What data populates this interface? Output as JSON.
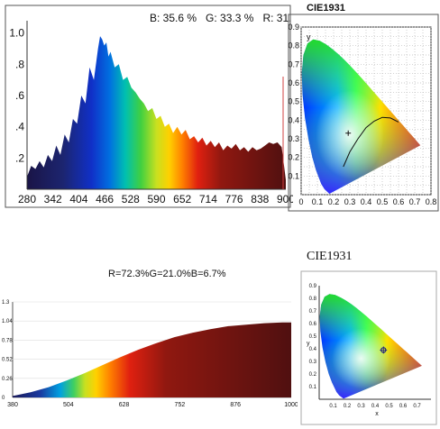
{
  "chart_data": [
    {
      "type": "area",
      "ratio_label": {
        "B": "B: 35.6 %",
        "G": "G: 33.3 %",
        "R": "R: 31."
      },
      "xticks": [
        280,
        342,
        404,
        466,
        528,
        590,
        652,
        714,
        776,
        838,
        900
      ],
      "yticks": [
        0.2,
        0.4,
        0.6,
        0.8,
        1.0
      ],
      "xlim": [
        280,
        900
      ],
      "ylim": [
        0,
        1.05
      ],
      "x": [
        280,
        290,
        300,
        310,
        320,
        330,
        340,
        350,
        360,
        370,
        380,
        390,
        400,
        410,
        420,
        430,
        440,
        450,
        455,
        460,
        465,
        470,
        475,
        480,
        490,
        500,
        510,
        520,
        530,
        540,
        550,
        560,
        570,
        580,
        590,
        600,
        610,
        620,
        630,
        640,
        650,
        660,
        670,
        680,
        690,
        700,
        710,
        720,
        730,
        740,
        750,
        760,
        770,
        780,
        790,
        800,
        810,
        820,
        830,
        840,
        850,
        860,
        870,
        880,
        890,
        900
      ],
      "y": [
        0.08,
        0.15,
        0.13,
        0.18,
        0.14,
        0.22,
        0.18,
        0.28,
        0.22,
        0.35,
        0.3,
        0.45,
        0.42,
        0.6,
        0.55,
        0.78,
        0.7,
        0.9,
        0.98,
        0.96,
        0.92,
        0.94,
        0.85,
        0.88,
        0.78,
        0.8,
        0.7,
        0.72,
        0.65,
        0.62,
        0.58,
        0.55,
        0.5,
        0.52,
        0.45,
        0.47,
        0.4,
        0.42,
        0.36,
        0.4,
        0.35,
        0.38,
        0.32,
        0.34,
        0.3,
        0.33,
        0.28,
        0.31,
        0.27,
        0.3,
        0.25,
        0.28,
        0.26,
        0.29,
        0.25,
        0.27,
        0.24,
        0.27,
        0.25,
        0.26,
        0.28,
        0.3,
        0.29,
        0.3,
        0.27,
        0.06
      ]
    },
    {
      "type": "scatter",
      "title": "CIE1931",
      "xticks": [
        0,
        0.1,
        0.2,
        0.3,
        0.4,
        0.5,
        0.6,
        0.7,
        0.8
      ],
      "yticks": [
        0.1,
        0.2,
        0.3,
        0.4,
        0.5,
        0.6,
        0.7,
        0.8,
        0.9
      ],
      "ylabel": "y",
      "xlim": [
        0,
        0.8
      ],
      "ylim": [
        0,
        0.9
      ],
      "grid": true,
      "point": {
        "x": 0.29,
        "y": 0.33
      },
      "planckian_locus": [
        [
          0.26,
          0.15
        ],
        [
          0.3,
          0.23
        ],
        [
          0.35,
          0.3
        ],
        [
          0.4,
          0.36
        ],
        [
          0.45,
          0.395
        ],
        [
          0.5,
          0.415
        ],
        [
          0.55,
          0.412
        ],
        [
          0.6,
          0.39
        ]
      ]
    },
    {
      "type": "area",
      "title": "R=72.3%G=21.0%B=6.7%",
      "xticks": [
        380,
        504,
        628,
        752,
        876,
        1000
      ],
      "yticks": [
        0,
        0.26,
        0.52,
        0.78,
        1.04,
        1.3
      ],
      "xlim": [
        380,
        1000
      ],
      "ylim": [
        0,
        1.3
      ],
      "x": [
        380,
        420,
        460,
        500,
        540,
        580,
        620,
        660,
        700,
        740,
        780,
        820,
        860,
        900,
        940,
        980,
        1000
      ],
      "y": [
        0.02,
        0.07,
        0.14,
        0.23,
        0.33,
        0.44,
        0.55,
        0.65,
        0.74,
        0.82,
        0.88,
        0.93,
        0.97,
        0.99,
        1.01,
        1.02,
        1.02
      ]
    },
    {
      "type": "scatter",
      "title": "CIE1931",
      "xticks": [
        0.1,
        0.2,
        0.3,
        0.4,
        0.5,
        0.6,
        0.7
      ],
      "yticks": [
        0.1,
        0.2,
        0.3,
        0.4,
        0.5,
        0.6,
        0.7,
        0.8,
        0.9
      ],
      "xlabel": "x",
      "ylabel": "y",
      "xlim": [
        0,
        0.8
      ],
      "ylim": [
        0,
        0.9
      ],
      "point": {
        "x": 0.46,
        "y": 0.39
      }
    }
  ]
}
